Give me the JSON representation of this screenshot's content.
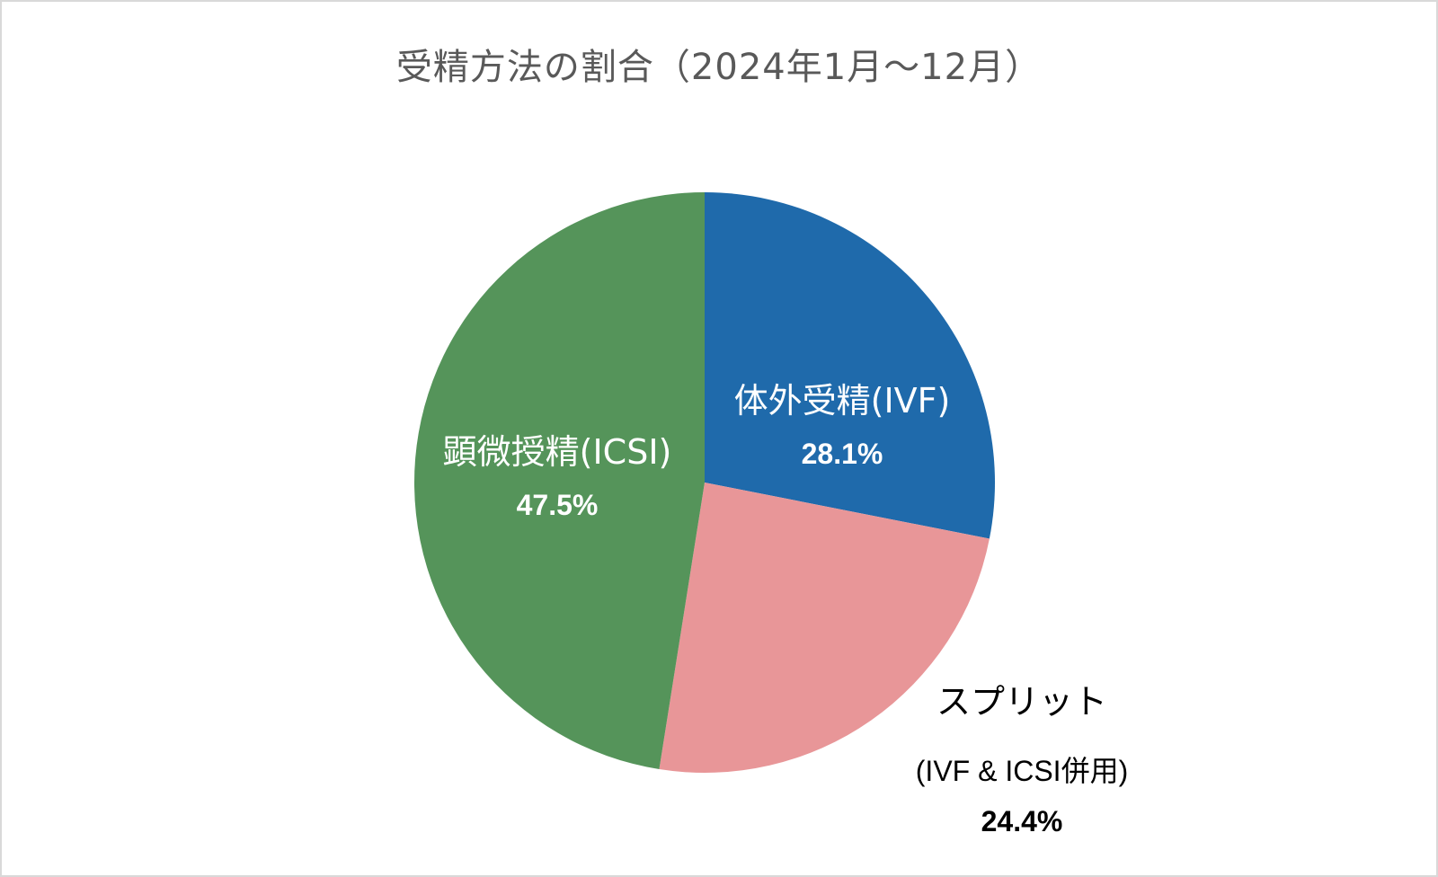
{
  "chart_data": {
    "type": "pie",
    "title": "受精方法の割合（2024年1月～12月）",
    "start_angle_deg": 0,
    "direction": "clockwise",
    "legend": "none",
    "slices": [
      {
        "label": "体外受精(IVF)",
        "sublabel": "",
        "value": 28.1,
        "value_label": "28.1%",
        "color": "#1f6aab",
        "label_color": "#ffffff"
      },
      {
        "label": "スプリット",
        "sublabel": "(IVF & ICSI併用)",
        "value": 24.4,
        "value_label": "24.4%",
        "color": "#e89698",
        "label_color": "#000000"
      },
      {
        "label": "顕微授精(ICSI)",
        "sublabel": "",
        "value": 47.5,
        "value_label": "47.5%",
        "color": "#55945a",
        "label_color": "#ffffff"
      }
    ]
  }
}
